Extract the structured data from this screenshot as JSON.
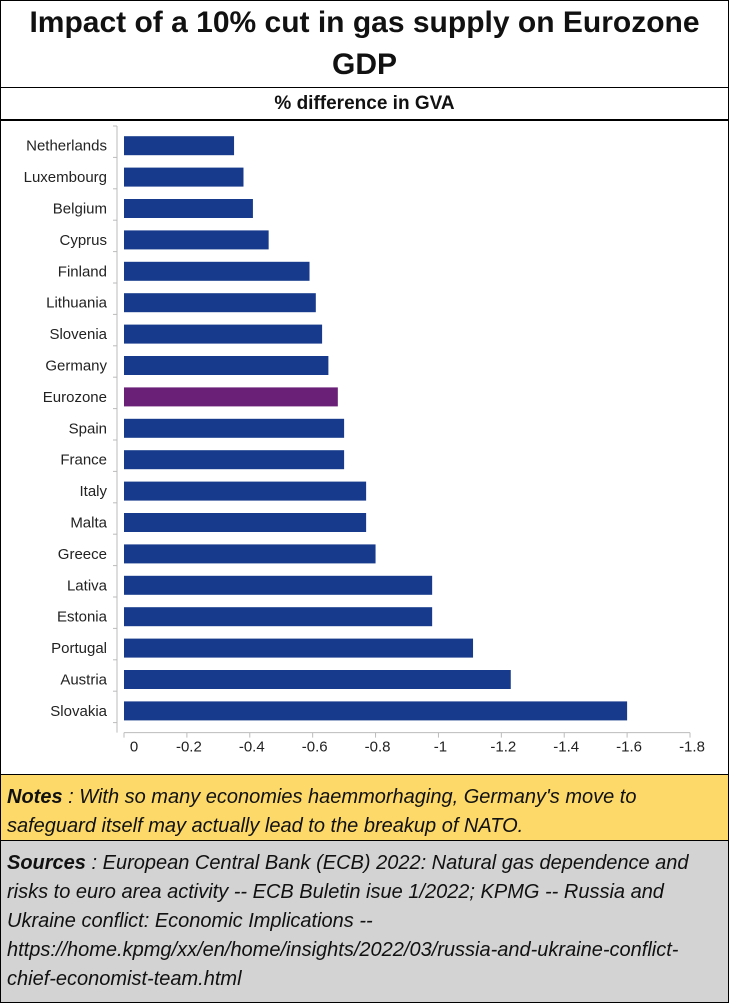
{
  "title": "Impact of a 10% cut in gas supply on Eurozone GDP",
  "subtitle": "% difference in GVA",
  "notes": {
    "label": "Notes",
    "text": " : With so many economies haemmorhaging, Germany's move to safeguard itself may actually lead to the breakup of NATO."
  },
  "sources": {
    "label": "Sources",
    "text": " : European Central Bank (ECB) 2022: Natural gas dependence and risks to euro area activity -- ECB Buletin isue 1/2022; KPMG -- Russia and Ukraine conflict: Economic Implications -- https://home.kpmg/xx/en/home/insights/2022/03/russia-and-ukraine-conflict-chief-economist-team.html"
  },
  "colors": {
    "bar": "#173a8c",
    "highlight": "#6a2077",
    "notes_bg": "#fcd968",
    "sources_bg": "#d3d3d3"
  },
  "chart_data": {
    "type": "bar",
    "orientation": "horizontal",
    "title": "Impact of a 10% cut in gas supply on Eurozone GDP",
    "xlabel": "% difference in GVA",
    "ylabel": "",
    "categories": [
      "Netherlands",
      "Luxembourg",
      "Belgium",
      "Cyprus",
      "Finland",
      "Lithuania",
      "Slovenia",
      "Germany",
      "Eurozone",
      "Spain",
      "France",
      "Italy",
      "Malta",
      "Greece",
      "Lativa",
      "Estonia",
      "Portugal",
      "Austria",
      "Slovakia"
    ],
    "values": [
      -0.35,
      -0.38,
      -0.41,
      -0.46,
      -0.59,
      -0.61,
      -0.63,
      -0.65,
      -0.68,
      -0.7,
      -0.7,
      -0.77,
      -0.77,
      -0.8,
      -0.98,
      -0.98,
      -1.11,
      -1.23,
      -1.6
    ],
    "highlight_category": "Eurozone",
    "xlim": [
      0,
      -1.8
    ],
    "xticks": [
      0,
      -0.2,
      -0.4,
      -0.6,
      -0.8,
      -1,
      -1.2,
      -1.4,
      -1.6,
      -1.8
    ],
    "xtick_labels": [
      "0",
      "-0.2",
      "-0.4",
      "-0.6",
      "-0.8",
      "-1",
      "-1.2",
      "-1.4",
      "-1.6",
      "-1.8"
    ],
    "grid": false,
    "legend": "none"
  }
}
